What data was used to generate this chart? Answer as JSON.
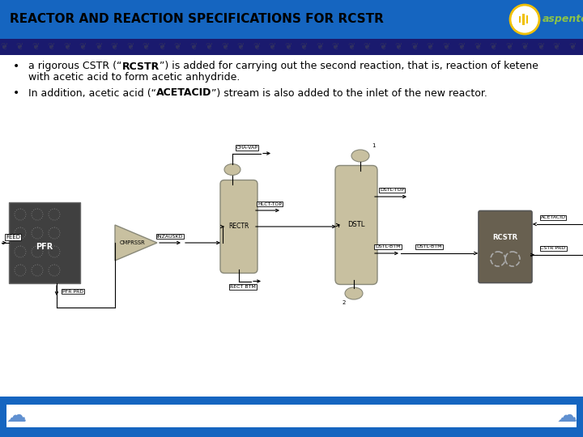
{
  "title": "REACTOR AND REACTION SPECIFICATIONS FOR RCSTR",
  "title_color": "#000000",
  "title_bg_color": "#1565C0",
  "bg_color": "#ffffff",
  "bullet1_line1_pre": "a rigorous CSTR (“",
  "bullet1_bold": "RCSTR",
  "bullet1_line1_post": "”) is added for carrying out the second reaction, that is, reaction of ketene",
  "bullet1_line2": "with acetic acid to form acetic anhydride.",
  "bullet2_pre": "In addition, acetic acid (“",
  "bullet2_bold": "ACETACID",
  "bullet2_post": "”) stream is also added to the inlet of the new reactor.",
  "aspentech_green": "#8BC34A",
  "logo_gold": "#F0C000",
  "footer_blue": "#1565C0",
  "footer_ornament_blue": "#6090D0",
  "band_dark": "#1a1a6e",
  "band_ornament": "#404040",
  "eq_tan": "#C8C0A0",
  "eq_edge": "#888878",
  "eq_dark": "#7a7060",
  "pfr_dark": "#505050",
  "rcstr_dark": "#686050"
}
